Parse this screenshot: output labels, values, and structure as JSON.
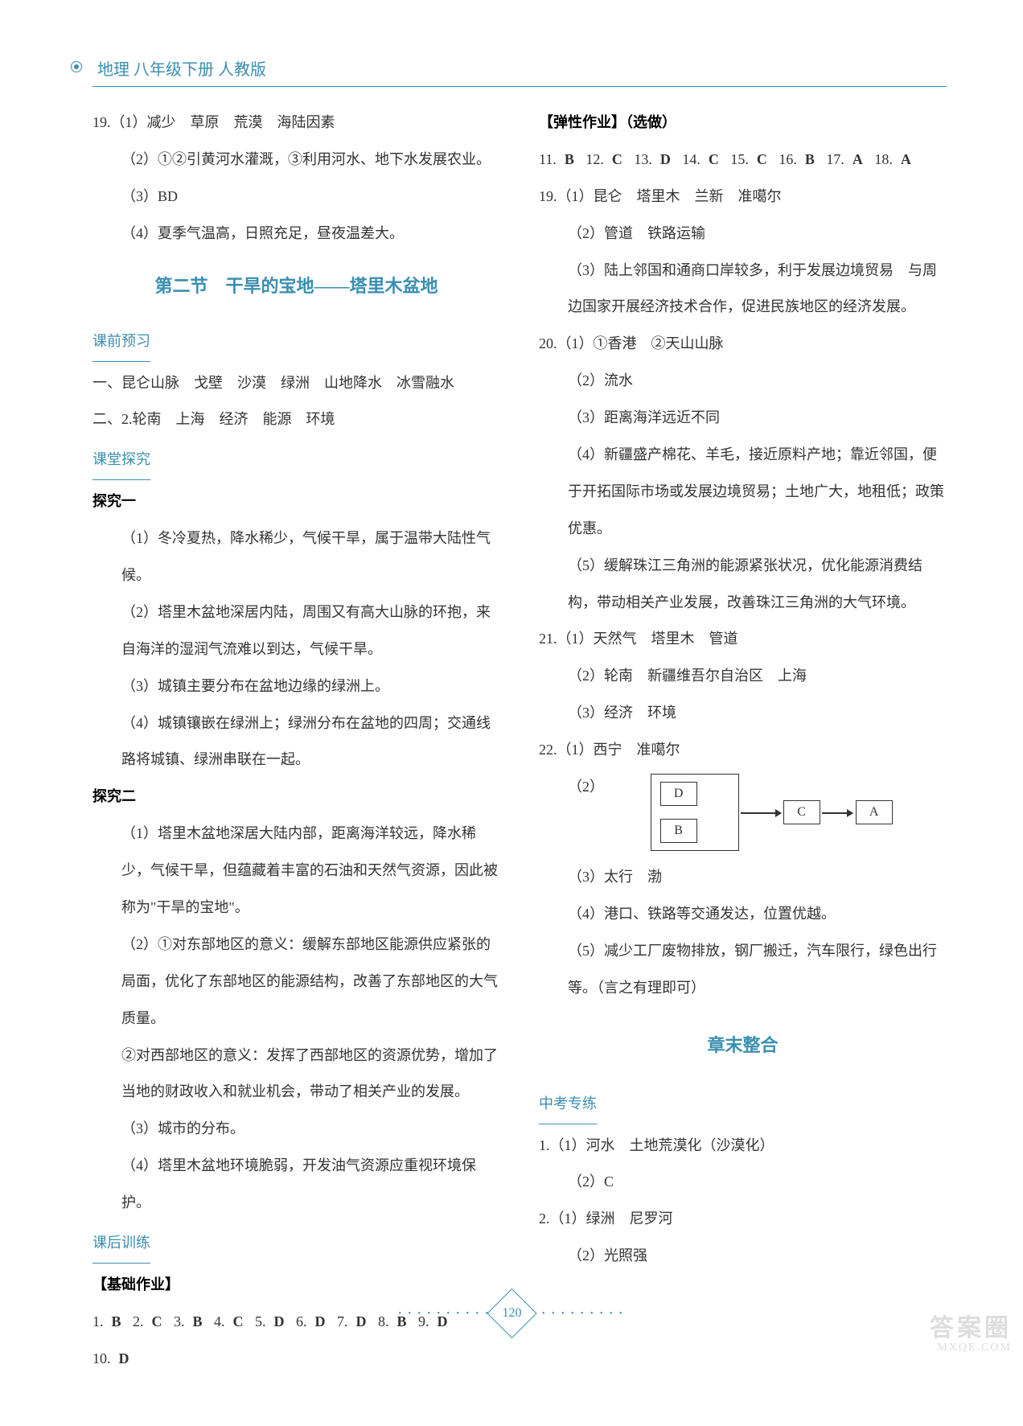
{
  "header": "地理 八年级下册 人教版",
  "page_number": "120",
  "watermark": {
    "line1": "答案圈",
    "line2": "MXQE.COM"
  },
  "left": {
    "q19": {
      "l1": "19.（1）减少　草原　荒漠　海陆因素",
      "l2": "（2）①②引黄河水灌溉，③利用河水、地下水发展农业。",
      "l3": "（3）BD",
      "l4": "（4）夏季气温高，日照充足，昼夜温差大。"
    },
    "section_title": "第二节　干旱的宝地——塔里木盆地",
    "preview_label": "课前预习",
    "preview": {
      "l1": "一、昆仑山脉　戈壁　沙漠　绿洲　山地降水　冰雪融水",
      "l2": "二、2.轮南　上海　经济　能源　环境"
    },
    "explore_label": "课堂探究",
    "ex1_title": "探究一",
    "ex1": {
      "l1": "（1）冬冷夏热，降水稀少，气候干旱，属于温带大陆性气候。",
      "l2": "（2）塔里木盆地深居内陆，周围又有高大山脉的环抱，来自海洋的湿润气流难以到达，气候干旱。",
      "l3": "（3）城镇主要分布在盆地边缘的绿洲上。",
      "l4": "（4）城镇镶嵌在绿洲上；绿洲分布在盆地的四周；交通线路将城镇、绿洲串联在一起。"
    },
    "ex2_title": "探究二",
    "ex2": {
      "l1": "（1）塔里木盆地深居大陆内部，距离海洋较远，降水稀少，气候干旱，但蕴藏着丰富的石油和天然气资源，因此被称为\"干旱的宝地\"。",
      "l2": "（2）①对东部地区的意义：缓解东部地区能源供应紧张的局面，优化了东部地区的能源结构，改善了东部地区的大气质量。",
      "l3": "②对西部地区的意义：发挥了西部地区的资源优势，增加了当地的财政收入和就业机会，带动了相关产业的发展。",
      "l4": "（3）城市的分布。",
      "l5": "（4）塔里木盆地环境脆弱，开发油气资源应重视环境保护。"
    },
    "train_label": "课后训练",
    "base_label": "【基础作业】",
    "mc": [
      {
        "n": "1.",
        "a": "B"
      },
      {
        "n": "2.",
        "a": "C"
      },
      {
        "n": "3.",
        "a": "B"
      },
      {
        "n": "4.",
        "a": "C"
      },
      {
        "n": "5.",
        "a": "D"
      },
      {
        "n": "6.",
        "a": "D"
      },
      {
        "n": "7.",
        "a": "D"
      },
      {
        "n": "8.",
        "a": "B"
      },
      {
        "n": "9.",
        "a": "D"
      },
      {
        "n": "10.",
        "a": "D"
      }
    ]
  },
  "right": {
    "elastic_label": "【弹性作业】（选做）",
    "mc": [
      {
        "n": "11.",
        "a": "B"
      },
      {
        "n": "12.",
        "a": "C"
      },
      {
        "n": "13.",
        "a": "D"
      },
      {
        "n": "14.",
        "a": "C"
      },
      {
        "n": "15.",
        "a": "C"
      },
      {
        "n": "16.",
        "a": "B"
      },
      {
        "n": "17.",
        "a": "A"
      },
      {
        "n": "18.",
        "a": "A"
      }
    ],
    "q19": {
      "l1": "19.（1）昆仑　塔里木　兰新　准噶尔",
      "l2": "（2）管道　铁路运输",
      "l3": "（3）陆上邻国和通商口岸较多，利于发展边境贸易　与周边国家开展经济技术合作，促进民族地区的经济发展。"
    },
    "q20": {
      "l1": "20.（1）①香港　②天山山脉",
      "l2": "（2）流水",
      "l3": "（3）距离海洋远近不同",
      "l4": "（4）新疆盛产棉花、羊毛，接近原料产地；靠近邻国，便于开拓国际市场或发展边境贸易；土地广大，地租低；政策优惠。",
      "l5": "（5）缓解珠江三角洲的能源紧张状况，优化能源消费结构，带动相关产业发展，改善珠江三角洲的大气环境。"
    },
    "q21": {
      "l1": "21.（1）天然气　塔里木　管道",
      "l2": "（2）轮南　新疆维吾尔自治区　上海",
      "l3": "（3）经济　环境"
    },
    "q22": {
      "l1": "22.（1）西宁　准噶尔",
      "l2pre": "（2）",
      "boxes": {
        "d": "D",
        "b": "B",
        "c": "C",
        "a": "A"
      },
      "l3": "（3）太行　渤",
      "l4": "（4）港口、铁路等交通发达，位置优越。",
      "l5": "（5）减少工厂废物排放，钢厂搬迁，汽车限行，绿色出行等。（言之有理即可）"
    },
    "chapter_title": "章末整合",
    "zk_label": "中考专练",
    "zk1": {
      "l1": "1.（1）河水　土地荒漠化（沙漠化）",
      "l2": "（2）C"
    },
    "zk2": {
      "l1": "2.（1）绿洲　尼罗河",
      "l2": "（2）光照强"
    }
  }
}
